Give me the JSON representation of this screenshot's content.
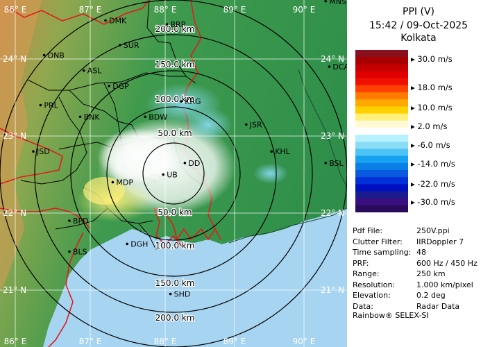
{
  "title": {
    "line1": "PPI (V)",
    "line2": "15:42 / 09-Oct-2025",
    "line3": "Kolkata"
  },
  "colors": {
    "sea": "#a7d4f0",
    "land_low": "#2f8f4a",
    "land_high": "#c98a4a",
    "range_ring": "#000000",
    "border_red": "#e11b1b",
    "district_border": "#000000"
  },
  "scale": {
    "labels": [
      "30.0 m/s",
      "18.0 m/s",
      "10.0 m/s",
      "2.0 m/s",
      "-6.0 m/s",
      "-14.0 m/s",
      "-22.0 m/s",
      "-30.0 m/s"
    ],
    "colors": [
      "#8a0f1f",
      "#a80000",
      "#c40000",
      "#e00000",
      "#f01000",
      "#ff4000",
      "#ff7a00",
      "#ffa800",
      "#ffd000",
      "#fff07a",
      "#fff9d6",
      "#ffffff",
      "#b7f0ff",
      "#8adcf5",
      "#4ec3f5",
      "#16a2f0",
      "#0a7fe6",
      "#0a5ae0",
      "#0030d8",
      "#0010c0",
      "#1b1b90",
      "#3a1080",
      "#2a0a5a"
    ]
  },
  "info": [
    {
      "key": "Pdf File:",
      "value": "250V.ppi"
    },
    {
      "key": "Clutter Filter:",
      "value": "IIRDoppler 7"
    },
    {
      "key": "Time sampling:",
      "value": "48"
    },
    {
      "key": "PRF:",
      "value": "600 Hz / 450 Hz"
    },
    {
      "key": "Range:",
      "value": "250 km"
    },
    {
      "key": "Resolution:",
      "value": "1.000 km/pixel"
    },
    {
      "key": "Elevation:",
      "value": "0.2 deg"
    },
    {
      "key": "Data:",
      "value": "Radar Data"
    }
  ],
  "footer": "Rainbow® SELEX-SI",
  "map": {
    "lon_labels": [
      "86° E",
      "87° E",
      "88° E",
      "89° E",
      "90° E"
    ],
    "lat_labels": [
      "24° N",
      "23° N",
      "22° N",
      "21° N"
    ],
    "range_labels": [
      "200.0 km",
      "150.0 km",
      "100.0 km",
      "50.0 km",
      "50.0 km",
      "100.0 km",
      "150.0 km",
      "200.0 km"
    ],
    "places": [
      {
        "name": "MNS",
        "lon": 90.3,
        "lat": 24.75
      },
      {
        "name": "BRP",
        "lon": 88.1,
        "lat": 24.45
      },
      {
        "name": "DMK",
        "lon": 87.25,
        "lat": 24.5
      },
      {
        "name": "DNB",
        "lon": 86.4,
        "lat": 24.05
      },
      {
        "name": "SUR",
        "lon": 87.45,
        "lat": 24.18
      },
      {
        "name": "ASL",
        "lon": 86.95,
        "lat": 23.85
      },
      {
        "name": "DCA",
        "lon": 90.35,
        "lat": 23.9
      },
      {
        "name": "DGP",
        "lon": 87.3,
        "lat": 23.65
      },
      {
        "name": "KRG",
        "lon": 88.3,
        "lat": 23.45
      },
      {
        "name": "PRL",
        "lon": 86.35,
        "lat": 23.4
      },
      {
        "name": "BNK",
        "lon": 86.9,
        "lat": 23.25
      },
      {
        "name": "BDW",
        "lon": 87.8,
        "lat": 23.25
      },
      {
        "name": "JSR",
        "lon": 89.2,
        "lat": 23.15
      },
      {
        "name": "KHL",
        "lon": 89.55,
        "lat": 22.8
      },
      {
        "name": "JSD",
        "lon": 86.25,
        "lat": 22.8
      },
      {
        "name": "BSL",
        "lon": 90.3,
        "lat": 22.65
      },
      {
        "name": "DD",
        "lon": 88.35,
        "lat": 22.65
      },
      {
        "name": "UB",
        "lon": 88.05,
        "lat": 22.5
      },
      {
        "name": "MDP",
        "lon": 87.35,
        "lat": 22.4
      },
      {
        "name": "BPD",
        "lon": 86.75,
        "lat": 21.9
      },
      {
        "name": "DGH",
        "lon": 87.55,
        "lat": 21.6
      },
      {
        "name": "BLS",
        "lon": 86.75,
        "lat": 21.5
      },
      {
        "name": "SHD",
        "lon": 88.15,
        "lat": 20.95
      }
    ]
  }
}
